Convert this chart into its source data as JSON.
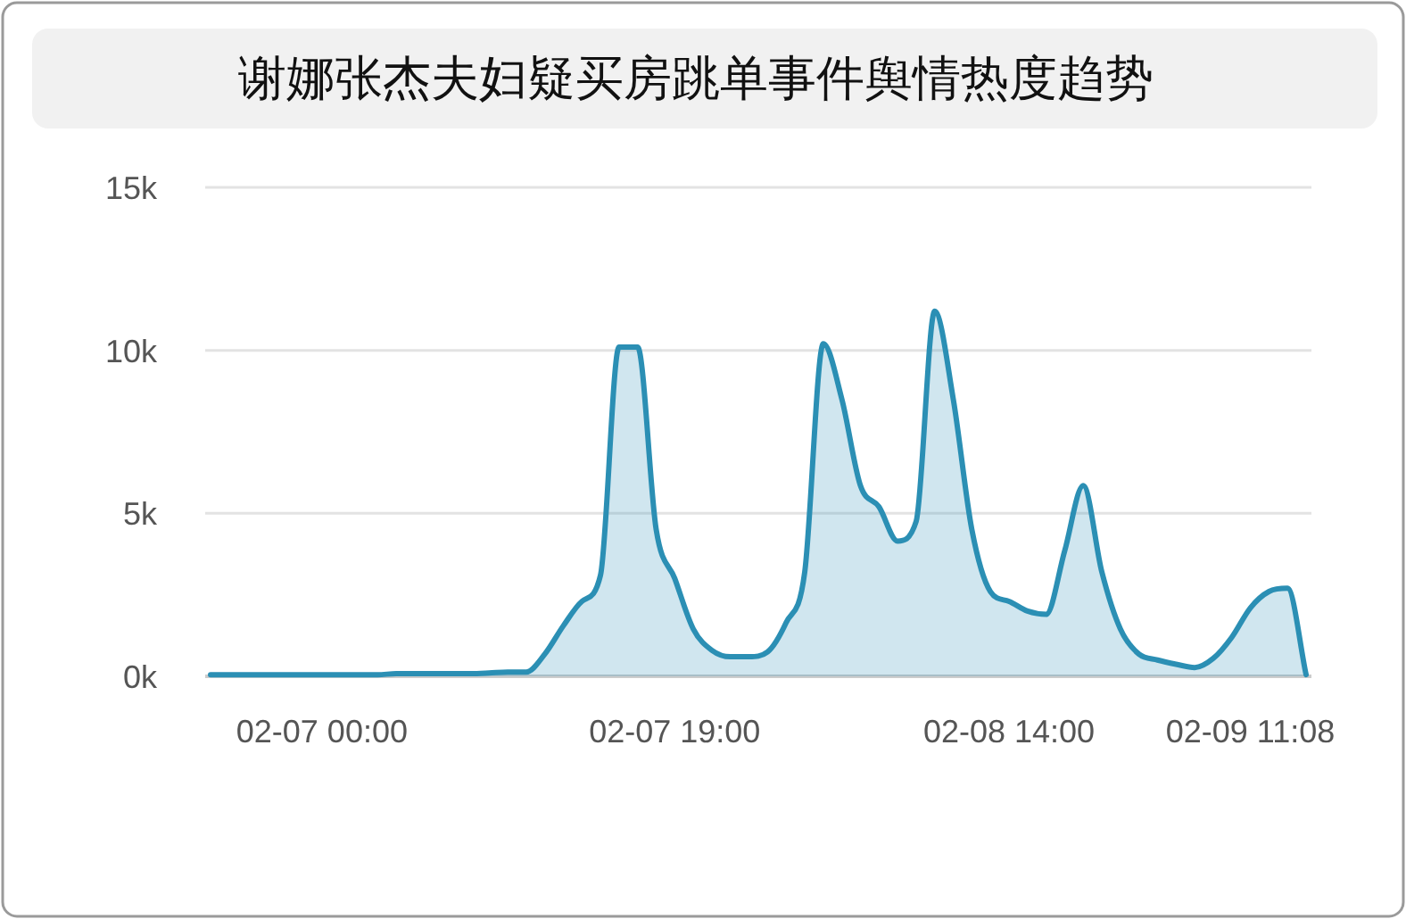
{
  "chart_data": {
    "type": "area",
    "title": "谢娜张杰夫妇疑买房跳单事件舆情热度趋势",
    "categories": [
      null,
      null,
      null,
      null,
      null,
      null,
      "02-07 00:00",
      null,
      null,
      null,
      null,
      null,
      null,
      null,
      null,
      null,
      null,
      null,
      null,
      null,
      null,
      null,
      null,
      null,
      null,
      "02-07 19:00",
      null,
      null,
      null,
      null,
      null,
      null,
      null,
      null,
      null,
      null,
      null,
      null,
      null,
      null,
      null,
      null,
      null,
      "02-08 14:00",
      null,
      null,
      null,
      null,
      null,
      null,
      null,
      null,
      null,
      null,
      null,
      null,
      "02-09 11:08",
      null,
      null,
      null
    ],
    "series": [
      {
        "color": "#2b8fb4",
        "values": [
          50,
          50,
          50,
          50,
          50,
          50,
          50,
          50,
          50,
          50,
          80,
          80,
          80,
          80,
          80,
          100,
          130,
          130,
          680,
          1550,
          2300,
          3100,
          10100,
          10100,
          4500,
          3000,
          1450,
          800,
          600,
          600,
          750,
          1650,
          3200,
          10200,
          8500,
          5850,
          5200,
          4150,
          4750,
          11200,
          8500,
          4500,
          2600,
          2300,
          2000,
          1900,
          3850,
          5850,
          3200,
          1450,
          680,
          500,
          370,
          270,
          550,
          1200,
          2100,
          2600,
          2700,
          50
        ]
      }
    ],
    "ylim": [
      0,
      15000
    ],
    "yticks": [
      {
        "value": 0,
        "label": "0k"
      },
      {
        "value": 5000,
        "label": "5k"
      },
      {
        "value": 10000,
        "label": "10k"
      },
      {
        "value": 15000,
        "label": "15k"
      }
    ],
    "grid": "y"
  }
}
